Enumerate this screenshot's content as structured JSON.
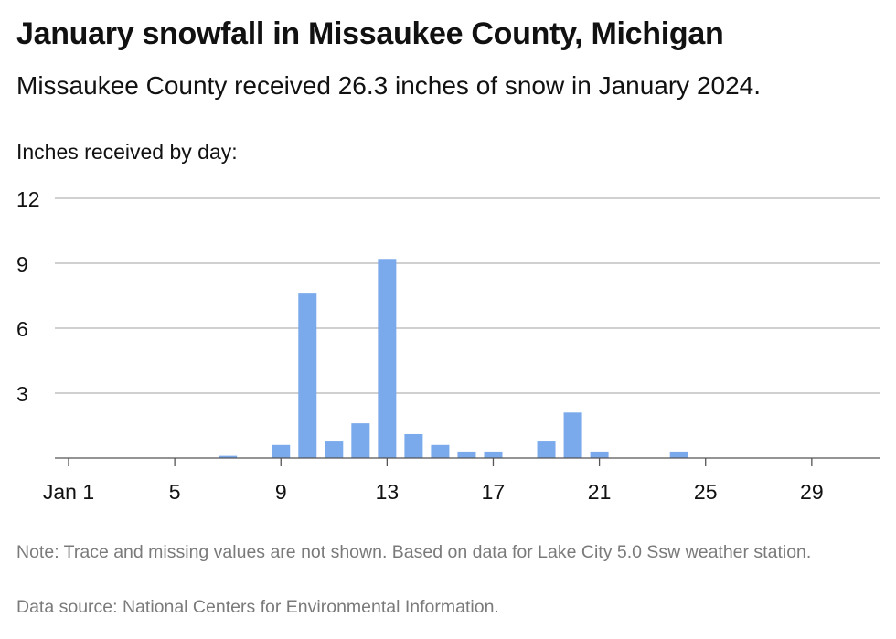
{
  "title": "January snowfall in Missaukee County, Michigan",
  "subtitle": "Missaukee County received 26.3 inches of snow in January 2024.",
  "y_axis_caption": "Inches received by day:",
  "note": "Note: Trace and missing values are not shown. Based on data for Lake City 5.0 Ssw weather station.",
  "source": "Data source: National Centers for Environmental Information.",
  "colors": {
    "bar": "#7aaaeb",
    "grid": "#b5b5b5",
    "axis": "#555555"
  },
  "chart_data": {
    "type": "bar",
    "ylim": [
      0,
      12
    ],
    "yticks": [
      3,
      6,
      9,
      12
    ],
    "xlim": [
      1,
      31
    ],
    "xticks": [
      {
        "day": 1,
        "label": "Jan 1"
      },
      {
        "day": 5,
        "label": "5"
      },
      {
        "day": 9,
        "label": "9"
      },
      {
        "day": 13,
        "label": "13"
      },
      {
        "day": 17,
        "label": "17"
      },
      {
        "day": 21,
        "label": "21"
      },
      {
        "day": 25,
        "label": "25"
      },
      {
        "day": 29,
        "label": "29"
      }
    ],
    "grid": true,
    "x": [
      7,
      9,
      10,
      11,
      12,
      13,
      14,
      15,
      16,
      17,
      19,
      20,
      21,
      24
    ],
    "values": [
      0.1,
      0.6,
      7.6,
      0.8,
      1.6,
      9.2,
      1.1,
      0.6,
      0.3,
      0.3,
      0.8,
      2.1,
      0.3,
      0.3
    ]
  }
}
